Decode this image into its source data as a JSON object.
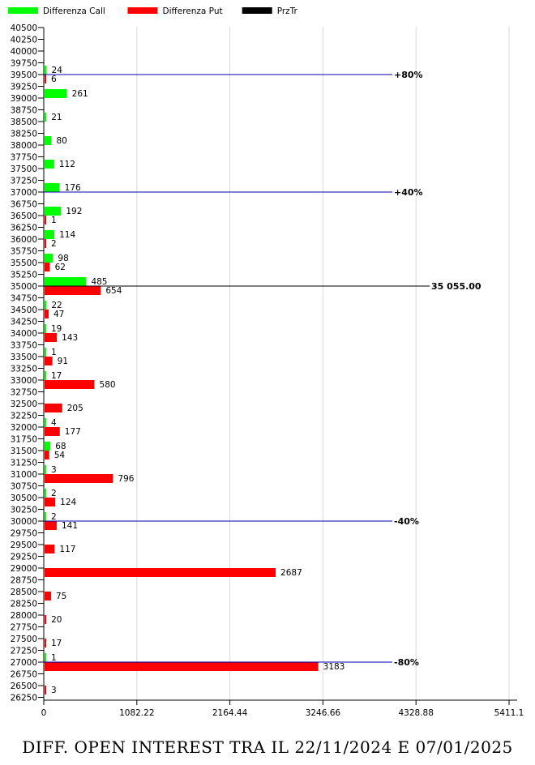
{
  "chart_data": {
    "type": "bar",
    "orientation": "horizontal",
    "legend": {
      "placement": "top-left",
      "items": [
        {
          "label": "Differenza Call",
          "color": "#00ff00"
        },
        {
          "label": "Differenza Put",
          "color": "#ff0000"
        },
        {
          "label": "PrzTr",
          "color": "#000000"
        }
      ]
    },
    "strikes": [
      40500,
      40250,
      40000,
      39750,
      39500,
      39250,
      39000,
      38750,
      38500,
      38250,
      38000,
      37750,
      37500,
      37250,
      37000,
      36750,
      36500,
      36250,
      36000,
      35750,
      35500,
      35250,
      35000,
      34750,
      34500,
      34250,
      34000,
      33750,
      33500,
      33250,
      33000,
      32750,
      32500,
      32250,
      32000,
      31750,
      31500,
      31250,
      31000,
      30750,
      30500,
      30250,
      30000,
      29750,
      29500,
      29250,
      29000,
      28750,
      28500,
      28250,
      28000,
      27750,
      27500,
      27250,
      27000,
      26750,
      26500,
      26250
    ],
    "series": [
      {
        "name": "Differenza Call",
        "color": "#00ff00",
        "points": [
          [
            39500,
            24
          ],
          [
            39000,
            261
          ],
          [
            38500,
            21
          ],
          [
            38000,
            80
          ],
          [
            37500,
            112
          ],
          [
            37000,
            176
          ],
          [
            36500,
            192
          ],
          [
            36000,
            114
          ],
          [
            35500,
            98
          ],
          [
            35000,
            485
          ],
          [
            34500,
            22
          ],
          [
            34000,
            19
          ],
          [
            33500,
            1
          ],
          [
            33000,
            17
          ],
          [
            32000,
            4
          ],
          [
            31500,
            68
          ],
          [
            31000,
            3
          ],
          [
            30500,
            2
          ],
          [
            30000,
            2
          ],
          [
            27000,
            1
          ]
        ]
      },
      {
        "name": "Differenza Put",
        "color": "#ff0000",
        "points": [
          [
            39500,
            6
          ],
          [
            36500,
            1
          ],
          [
            36000,
            2
          ],
          [
            35500,
            62
          ],
          [
            35000,
            654
          ],
          [
            34500,
            47
          ],
          [
            34000,
            143
          ],
          [
            33500,
            91
          ],
          [
            33000,
            580
          ],
          [
            32500,
            205
          ],
          [
            32000,
            177
          ],
          [
            31500,
            54
          ],
          [
            31000,
            796
          ],
          [
            30500,
            124
          ],
          [
            30000,
            141
          ],
          [
            29500,
            117
          ],
          [
            29000,
            2687
          ],
          [
            28500,
            75
          ],
          [
            28000,
            20
          ],
          [
            27500,
            17
          ],
          [
            27000,
            3183
          ],
          [
            26500,
            3
          ]
        ]
      }
    ],
    "reference_lines": [
      {
        "strike": 39500,
        "label": "+80%",
        "color": "#0000aa"
      },
      {
        "strike": 37000,
        "label": "+40%",
        "color": "#0000aa"
      },
      {
        "strike": 35000,
        "label": "35 055.00",
        "color": "#000000",
        "series": "PrzTr"
      },
      {
        "strike": 30000,
        "label": "-40%",
        "color": "#0000aa"
      },
      {
        "strike": 27000,
        "label": "-80%",
        "color": "#0000aa"
      }
    ],
    "x_ticks": [
      "0",
      "1082.22",
      "2164.44",
      "3246.66",
      "4328.88",
      "5411.1"
    ],
    "xlim": [
      0,
      5411.1
    ],
    "grid": true,
    "title": "DIFF. OPEN INTEREST TRA IL 22/11/2024 E 07/01/2025"
  }
}
